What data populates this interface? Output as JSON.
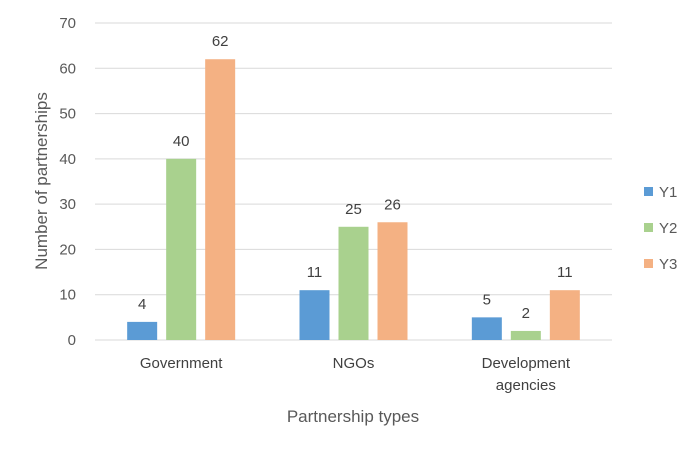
{
  "chart_data": {
    "type": "bar",
    "title": "",
    "xlabel": "Partnership types",
    "ylabel": "Number of partnerships",
    "categories": [
      [
        "Government"
      ],
      [
        "NGOs"
      ],
      [
        "Development",
        "agencies"
      ]
    ],
    "series": [
      {
        "name": "Y1",
        "values": [
          4,
          11,
          5
        ],
        "color": "#5b9bd5"
      },
      {
        "name": "Y2",
        "values": [
          40,
          25,
          2
        ],
        "color": "#a9d18e"
      },
      {
        "name": "Y3",
        "values": [
          62,
          26,
          11
        ],
        "color": "#f4b183"
      }
    ],
    "ylim": [
      0,
      70
    ],
    "yticks": [
      0,
      10,
      20,
      30,
      40,
      50,
      60,
      70
    ],
    "grid": true,
    "legend": "right",
    "data_labels": true
  }
}
